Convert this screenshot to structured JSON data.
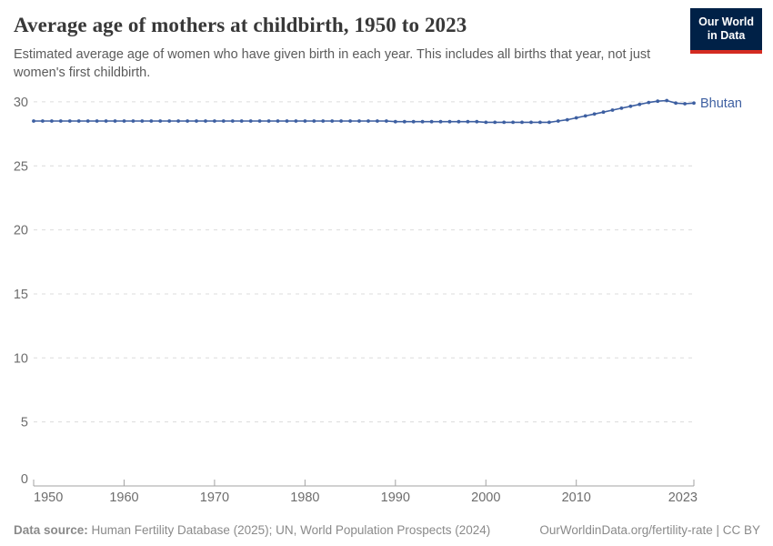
{
  "header": {
    "title": "Average age of mothers at childbirth, 1950 to 2023",
    "subtitle": "Estimated average age of women who have given birth in each year. This includes all births that year, not just women's first childbirth.",
    "logo": {
      "line1": "Our World",
      "line2": "in Data",
      "bg_color": "#002147",
      "accent_color": "#d42b21"
    }
  },
  "footer": {
    "source_label": "Data source:",
    "source_text": " Human Fertility Database (2025); UN, World Population Prospects (2024)",
    "license_text": "OurWorldinData.org/fertility-rate | CC BY"
  },
  "chart_data": {
    "type": "line",
    "title": "Average age of mothers at childbirth, 1950 to 2023",
    "xlabel": "",
    "ylabel": "",
    "xlim": [
      1950,
      2023
    ],
    "ylim": [
      0,
      31
    ],
    "grid": "dashed-horizontal",
    "legend_position": "end-of-line",
    "x_ticks": [
      1950,
      1960,
      1970,
      1980,
      1990,
      2000,
      2010,
      2023
    ],
    "y_ticks": [
      0,
      5,
      10,
      15,
      20,
      25,
      30
    ],
    "line_color": "#3d5fa1",
    "axis_color": "#a3a3a3",
    "grid_color": "#dcdcdc",
    "tick_label_color": "#6d6d6d",
    "years": [
      1950,
      1951,
      1952,
      1953,
      1954,
      1955,
      1956,
      1957,
      1958,
      1959,
      1960,
      1961,
      1962,
      1963,
      1964,
      1965,
      1966,
      1967,
      1968,
      1969,
      1970,
      1971,
      1972,
      1973,
      1974,
      1975,
      1976,
      1977,
      1978,
      1979,
      1980,
      1981,
      1982,
      1983,
      1984,
      1985,
      1986,
      1987,
      1988,
      1989,
      1990,
      1991,
      1992,
      1993,
      1994,
      1995,
      1996,
      1997,
      1998,
      1999,
      2000,
      2001,
      2002,
      2003,
      2004,
      2005,
      2006,
      2007,
      2008,
      2009,
      2010,
      2011,
      2012,
      2013,
      2014,
      2015,
      2016,
      2017,
      2018,
      2019,
      2020,
      2021,
      2022,
      2023
    ],
    "series": [
      {
        "name": "Bhutan",
        "values": [
          28.5,
          28.5,
          28.5,
          28.5,
          28.5,
          28.5,
          28.5,
          28.5,
          28.5,
          28.5,
          28.5,
          28.5,
          28.5,
          28.5,
          28.5,
          28.5,
          28.5,
          28.5,
          28.5,
          28.5,
          28.5,
          28.5,
          28.5,
          28.5,
          28.5,
          28.5,
          28.5,
          28.5,
          28.5,
          28.5,
          28.5,
          28.5,
          28.5,
          28.5,
          28.5,
          28.5,
          28.5,
          28.5,
          28.5,
          28.5,
          28.45,
          28.45,
          28.45,
          28.45,
          28.45,
          28.45,
          28.45,
          28.45,
          28.45,
          28.45,
          28.4,
          28.4,
          28.4,
          28.4,
          28.4,
          28.4,
          28.4,
          28.4,
          28.5,
          28.6,
          28.75,
          28.9,
          29.05,
          29.2,
          29.35,
          29.5,
          29.65,
          29.8,
          29.95,
          30.05,
          30.1,
          29.9,
          29.85,
          29.9
        ]
      }
    ]
  }
}
